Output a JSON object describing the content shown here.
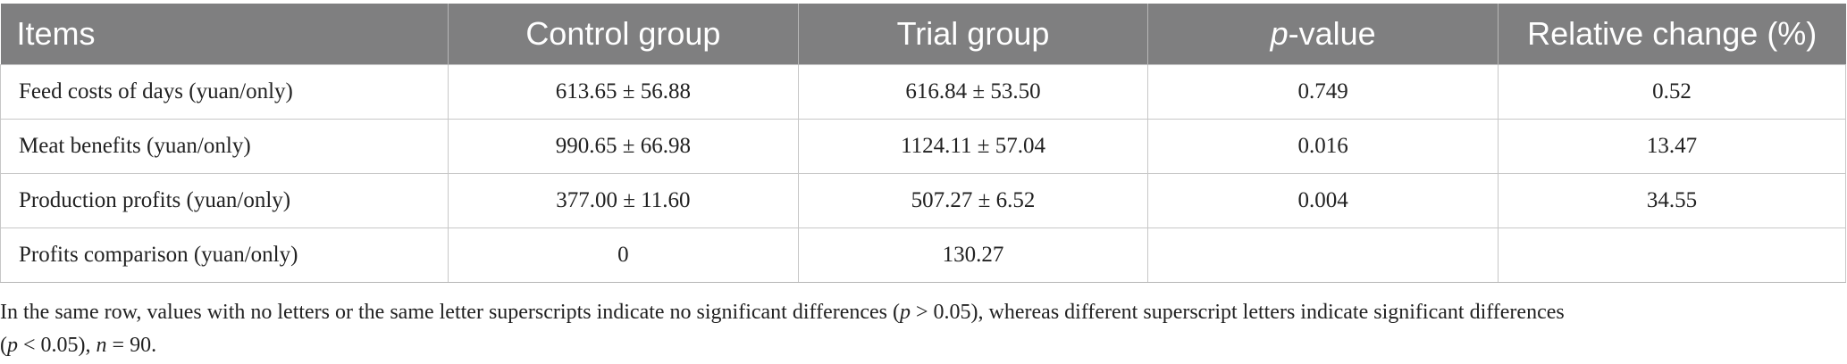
{
  "table": {
    "headers": [
      {
        "text": "Items"
      },
      {
        "text": "Control group"
      },
      {
        "text": "Trial group"
      },
      {
        "italic": "p",
        "text": "-value"
      },
      {
        "text": "Relative change (%)"
      }
    ],
    "rows": [
      [
        "Feed costs of days (yuan/only)",
        "613.65 ± 56.88",
        "616.84 ± 53.50",
        "0.749",
        "0.52"
      ],
      [
        "Meat benefits (yuan/only)",
        "990.65 ± 66.98",
        "1124.11 ± 57.04",
        "0.016",
        "13.47"
      ],
      [
        "Production profits (yuan/only)",
        "377.00 ± 11.60",
        "507.27 ± 6.52",
        "0.004",
        "34.55"
      ],
      [
        "Profits comparison (yuan/only)",
        "0",
        "130.27",
        "",
        ""
      ]
    ]
  },
  "footnote": {
    "part1": "In the same row, values with no letters or the same letter superscripts indicate no significant differences (",
    "p1": "p",
    "part2": " > 0.05), whereas different superscript letters indicate significant differences",
    "part3": "(",
    "p2": "p",
    "part4": " < 0.05), ",
    "n": "n",
    "part5": " = 90."
  }
}
